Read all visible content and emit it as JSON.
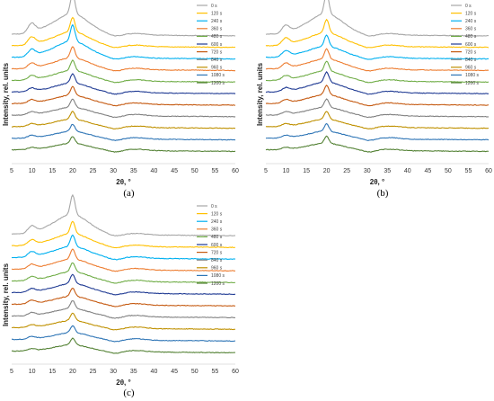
{
  "chart_data": [
    {
      "type": "line",
      "panel_label": "(a)",
      "xlabel": "2θ, °",
      "ylabel": "Intensity, rel. units",
      "xlim": [
        5,
        60
      ],
      "xticks": [
        "5",
        "10",
        "15",
        "20",
        "25",
        "30",
        "35",
        "40",
        "45",
        "50",
        "55",
        "60"
      ],
      "grid": false,
      "legend_position": "top-right",
      "series": [
        {
          "name": "0 s",
          "color": "#a6a6a6",
          "peak_10": 0.55,
          "peak_20": 1.0
        },
        {
          "name": "120 s",
          "color": "#ffc000",
          "peak_10": 0.45,
          "peak_20": 0.7
        },
        {
          "name": "240 s",
          "color": "#00b0f0",
          "peak_10": 0.4,
          "peak_20": 0.8
        },
        {
          "name": "360 s",
          "color": "#ed7d31",
          "peak_10": 0.3,
          "peak_20": 0.55
        },
        {
          "name": "480 s",
          "color": "#70ad47",
          "peak_10": 0.25,
          "peak_20": 0.5
        },
        {
          "name": "600 s",
          "color": "#1f3a93",
          "peak_10": 0.2,
          "peak_20": 0.45
        },
        {
          "name": "720 s",
          "color": "#c55a11",
          "peak_10": 0.2,
          "peak_20": 0.42
        },
        {
          "name": "840 s",
          "color": "#808080",
          "peak_10": 0.18,
          "peak_20": 0.4
        },
        {
          "name": "960 s",
          "color": "#bf9000",
          "peak_10": 0.15,
          "peak_20": 0.38
        },
        {
          "name": "1080 s",
          "color": "#2e75b6",
          "peak_10": 0.15,
          "peak_20": 0.35
        },
        {
          "name": "1200 s",
          "color": "#548235",
          "peak_10": 0.12,
          "peak_20": 0.33
        }
      ]
    },
    {
      "type": "line",
      "panel_label": "(b)",
      "xlabel": "2θ, °",
      "ylabel": "Intensity, rel. units",
      "xlim": [
        5,
        60
      ],
      "xticks": [
        "5",
        "10",
        "15",
        "20",
        "25",
        "30",
        "35",
        "40",
        "45",
        "50",
        "55",
        "60"
      ],
      "grid": false,
      "legend_position": "top-right",
      "series": [
        {
          "name": "0 s",
          "color": "#a6a6a6",
          "peak_10": 0.45,
          "peak_20": 1.0
        },
        {
          "name": "120 s",
          "color": "#ffc000",
          "peak_10": 0.4,
          "peak_20": 0.65
        },
        {
          "name": "240 s",
          "color": "#00b0f0",
          "peak_10": 0.35,
          "peak_20": 0.55
        },
        {
          "name": "360 s",
          "color": "#ed7d31",
          "peak_10": 0.3,
          "peak_20": 0.5
        },
        {
          "name": "480 s",
          "color": "#70ad47",
          "peak_10": 0.25,
          "peak_20": 0.48
        },
        {
          "name": "600 s",
          "color": "#1f3a93",
          "peak_10": 0.22,
          "peak_20": 0.5
        },
        {
          "name": "720 s",
          "color": "#c55a11",
          "peak_10": 0.2,
          "peak_20": 0.45
        },
        {
          "name": "840 s",
          "color": "#808080",
          "peak_10": 0.18,
          "peak_20": 0.4
        },
        {
          "name": "960 s",
          "color": "#bf9000",
          "peak_10": 0.15,
          "peak_20": 0.38
        },
        {
          "name": "1080 s",
          "color": "#2e75b6",
          "peak_10": 0.15,
          "peak_20": 0.36
        },
        {
          "name": "1200 s",
          "color": "#548235",
          "peak_10": 0.12,
          "peak_20": 0.34
        }
      ]
    },
    {
      "type": "line",
      "panel_label": "(c)",
      "xlabel": "2θ, °",
      "ylabel": "Intensity, rel. units",
      "xlim": [
        5,
        60
      ],
      "xticks": [
        "5",
        "10",
        "15",
        "20",
        "25",
        "30",
        "35",
        "40",
        "45",
        "50",
        "55",
        "60"
      ],
      "grid": false,
      "legend_position": "top-right",
      "series": [
        {
          "name": "0 s",
          "color": "#a6a6a6",
          "peak_10": 0.4,
          "peak_20": 0.95
        },
        {
          "name": "120 s",
          "color": "#ffc000",
          "peak_10": 0.3,
          "peak_20": 0.6
        },
        {
          "name": "240 s",
          "color": "#00b0f0",
          "peak_10": 0.3,
          "peak_20": 0.55
        },
        {
          "name": "360 s",
          "color": "#ed7d31",
          "peak_10": 0.25,
          "peak_20": 0.5
        },
        {
          "name": "480 s",
          "color": "#70ad47",
          "peak_10": 0.22,
          "peak_20": 0.45
        },
        {
          "name": "600 s",
          "color": "#1f3a93",
          "peak_10": 0.2,
          "peak_20": 0.45
        },
        {
          "name": "720 s",
          "color": "#c55a11",
          "peak_10": 0.2,
          "peak_20": 0.4
        },
        {
          "name": "840 s",
          "color": "#808080",
          "peak_10": 0.18,
          "peak_20": 0.38
        },
        {
          "name": "960 s",
          "color": "#bf9000",
          "peak_10": 0.15,
          "peak_20": 0.36
        },
        {
          "name": "1080 s",
          "color": "#2e75b6",
          "peak_10": 0.15,
          "peak_20": 0.34
        },
        {
          "name": "1200 s",
          "color": "#548235",
          "peak_10": 0.12,
          "peak_20": 0.32
        }
      ]
    }
  ]
}
